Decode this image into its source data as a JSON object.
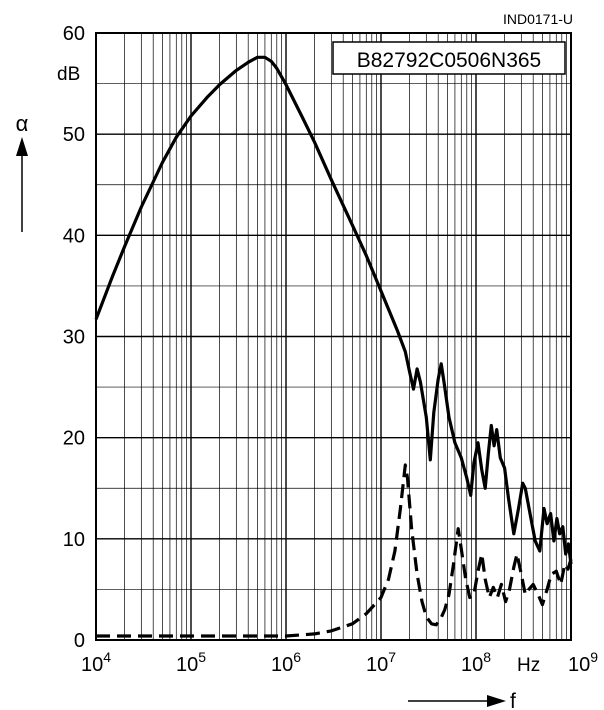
{
  "header": {
    "code": "IND0171-U",
    "part_number": "B82792C0506N365"
  },
  "chart_data": {
    "type": "line",
    "title": "",
    "xscale": "log",
    "xlim": [
      10000,
      1000000000
    ],
    "ylim": [
      0,
      60
    ],
    "grid": "on",
    "ylabel_symbol": "α",
    "ylabel_unit": "dB",
    "xlabel_symbol": "f",
    "xlabel_unit": "Hz",
    "x_ticks": [
      {
        "base": "10",
        "exp": "4"
      },
      {
        "base": "10",
        "exp": "5"
      },
      {
        "base": "10",
        "exp": "6"
      },
      {
        "base": "10",
        "exp": "7"
      },
      {
        "base": "10",
        "exp": "8"
      },
      {
        "base": "10",
        "exp": "9"
      }
    ],
    "y_ticks": [
      "0",
      "10",
      "20",
      "30",
      "40",
      "50",
      "60"
    ],
    "series": [
      {
        "style": "solid",
        "points": [
          [
            10000,
            31.7
          ],
          [
            15000,
            36.0
          ],
          [
            20000,
            38.9
          ],
          [
            30000,
            42.8
          ],
          [
            50000,
            47.2
          ],
          [
            70000,
            49.7
          ],
          [
            100000,
            51.8
          ],
          [
            150000,
            53.7
          ],
          [
            200000,
            54.9
          ],
          [
            300000,
            56.3
          ],
          [
            400000,
            57.1
          ],
          [
            500000,
            57.6
          ],
          [
            600000,
            57.6
          ],
          [
            700000,
            57.2
          ],
          [
            800000,
            56.5
          ],
          [
            1000000,
            54.9
          ],
          [
            1500000,
            51.6
          ],
          [
            2000000,
            49.2
          ],
          [
            3000000,
            45.5
          ],
          [
            5000000,
            41.0
          ],
          [
            7000000,
            38.0
          ],
          [
            10000000,
            34.5
          ],
          [
            15000000,
            30.5
          ],
          [
            18000000,
            28.5
          ],
          [
            20000000,
            26.5
          ],
          [
            22000000,
            24.8
          ],
          [
            24000000,
            26.8
          ],
          [
            26000000,
            25.5
          ],
          [
            30000000,
            22.0
          ],
          [
            33000000,
            17.8
          ],
          [
            36000000,
            22.5
          ],
          [
            40000000,
            25.8
          ],
          [
            43000000,
            27.3
          ],
          [
            46000000,
            25.5
          ],
          [
            52000000,
            22.0
          ],
          [
            60000000,
            19.5
          ],
          [
            70000000,
            18.0
          ],
          [
            80000000,
            16.0
          ],
          [
            88000000,
            14.3
          ],
          [
            95000000,
            17.5
          ],
          [
            105000000,
            19.5
          ],
          [
            115000000,
            16.8
          ],
          [
            125000000,
            15.0
          ],
          [
            135000000,
            18.5
          ],
          [
            145000000,
            21.2
          ],
          [
            155000000,
            19.2
          ],
          [
            165000000,
            20.8
          ],
          [
            180000000,
            18.0
          ],
          [
            200000000,
            17.0
          ],
          [
            220000000,
            14.0
          ],
          [
            250000000,
            10.5
          ],
          [
            280000000,
            13.0
          ],
          [
            310000000,
            15.5
          ],
          [
            330000000,
            15.0
          ],
          [
            370000000,
            12.5
          ],
          [
            420000000,
            9.8
          ],
          [
            470000000,
            8.8
          ],
          [
            520000000,
            13.0
          ],
          [
            560000000,
            11.5
          ],
          [
            610000000,
            12.5
          ],
          [
            660000000,
            9.8
          ],
          [
            710000000,
            12.0
          ],
          [
            760000000,
            10.5
          ],
          [
            820000000,
            11.2
          ],
          [
            880000000,
            8.5
          ],
          [
            940000000,
            9.5
          ],
          [
            1000000000,
            7.5
          ]
        ]
      },
      {
        "style": "dashed",
        "points": [
          [
            10000,
            0.4
          ],
          [
            100000,
            0.4
          ],
          [
            1000000,
            0.4
          ],
          [
            2000000,
            0.6
          ],
          [
            3000000,
            0.9
          ],
          [
            5000000,
            1.6
          ],
          [
            7000000,
            2.6
          ],
          [
            10000000,
            4.2
          ],
          [
            12000000,
            6.0
          ],
          [
            14000000,
            8.8
          ],
          [
            16000000,
            13.0
          ],
          [
            18000000,
            17.3
          ],
          [
            19000000,
            16.0
          ],
          [
            21000000,
            11.0
          ],
          [
            24000000,
            6.5
          ],
          [
            27000000,
            3.8
          ],
          [
            30000000,
            2.3
          ],
          [
            34000000,
            1.6
          ],
          [
            38000000,
            1.5
          ],
          [
            42000000,
            2.0
          ],
          [
            47000000,
            3.0
          ],
          [
            52000000,
            4.5
          ],
          [
            58000000,
            7.5
          ],
          [
            65000000,
            11.0
          ],
          [
            70000000,
            9.0
          ],
          [
            78000000,
            6.0
          ],
          [
            86000000,
            4.2
          ],
          [
            95000000,
            4.5
          ],
          [
            105000000,
            6.8
          ],
          [
            115000000,
            8.5
          ],
          [
            125000000,
            6.0
          ],
          [
            138000000,
            4.2
          ],
          [
            152000000,
            5.2
          ],
          [
            168000000,
            4.2
          ],
          [
            185000000,
            5.5
          ],
          [
            205000000,
            3.8
          ],
          [
            225000000,
            5.0
          ],
          [
            250000000,
            7.2
          ],
          [
            270000000,
            8.5
          ],
          [
            300000000,
            6.5
          ],
          [
            330000000,
            4.5
          ],
          [
            360000000,
            5.0
          ],
          [
            400000000,
            5.5
          ],
          [
            450000000,
            4.5
          ],
          [
            500000000,
            3.5
          ],
          [
            560000000,
            5.0
          ],
          [
            620000000,
            6.5
          ],
          [
            700000000,
            6.8
          ],
          [
            780000000,
            5.5
          ],
          [
            860000000,
            7.5
          ],
          [
            930000000,
            7.0
          ],
          [
            1000000000,
            8.0
          ]
        ]
      }
    ]
  }
}
